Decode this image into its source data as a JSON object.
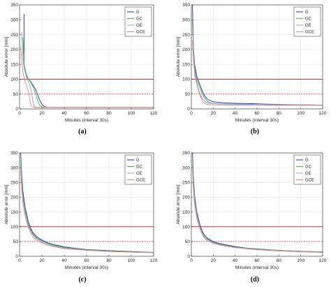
{
  "colors": {
    "G": "#1f2bb8",
    "GC": "#2fbf2f",
    "GE": "#9b9bcc",
    "GCE": "#f08080",
    "threshold_100": "#e8101a",
    "threshold_50": "#f04060",
    "grid": "#e3e3e3",
    "axis": "#262626"
  },
  "chart_data": [
    {
      "type": "line",
      "panel_label": "(a)",
      "xlabel": "Minutes (interval 30s)",
      "ylabel": "Absolute error [mm]",
      "xlim": [
        0,
        120
      ],
      "ylim": [
        0,
        350
      ],
      "xticks": [
        0,
        20,
        40,
        60,
        80,
        100,
        120
      ],
      "yticks": [
        0,
        50,
        100,
        150,
        200,
        250,
        300,
        350
      ],
      "grid": true,
      "legend_position": "top-right",
      "hlines": [
        {
          "y": 100,
          "style": "solid"
        },
        {
          "y": 50,
          "style": "dashed"
        }
      ],
      "series": [
        {
          "name": "G",
          "x": [
            4,
            4,
            4.5,
            5,
            6,
            8,
            10,
            12,
            14,
            16,
            18,
            20,
            22,
            25,
            30,
            40,
            60,
            80,
            100,
            120
          ],
          "y": [
            320,
            155,
            140,
            125,
            112,
            100,
            92,
            80,
            68,
            50,
            30,
            15,
            8,
            5,
            5,
            5,
            5,
            5,
            5,
            5
          ]
        },
        {
          "name": "GC",
          "x": [
            3,
            4,
            6,
            8,
            10,
            12,
            14,
            16,
            18,
            20,
            25,
            30,
            60,
            120
          ],
          "y": [
            240,
            150,
            118,
            100,
            90,
            75,
            55,
            30,
            12,
            7,
            5,
            5,
            5,
            5
          ]
        },
        {
          "name": "GE",
          "x": [
            2,
            3,
            4,
            6,
            8,
            10,
            11,
            12,
            13,
            15,
            20,
            30,
            120
          ],
          "y": [
            260,
            170,
            140,
            110,
            90,
            70,
            48,
            25,
            10,
            6,
            5,
            5,
            5
          ]
        },
        {
          "name": "GCE",
          "x": [
            1,
            2,
            3,
            4,
            6,
            8,
            9,
            10,
            11,
            12,
            15,
            20,
            30,
            120
          ],
          "y": [
            210,
            160,
            125,
            105,
            80,
            58,
            35,
            15,
            9,
            6,
            5,
            5,
            5,
            5
          ]
        }
      ]
    },
    {
      "type": "line",
      "panel_label": "(b)",
      "xlabel": "Minutes (interval 30s)",
      "ylabel": "Absolute error [mm]",
      "xlim": [
        0,
        120
      ],
      "ylim": [
        0,
        350
      ],
      "xticks": [
        0,
        20,
        40,
        60,
        80,
        100,
        120
      ],
      "yticks": [
        0,
        50,
        100,
        150,
        200,
        250,
        300,
        350
      ],
      "grid": true,
      "legend_position": "top-right",
      "hlines": [
        {
          "y": 100,
          "style": "solid"
        },
        {
          "y": 50,
          "style": "dashed"
        }
      ],
      "series": [
        {
          "name": "G",
          "x": [
            1,
            2,
            3,
            5,
            8,
            10,
            12,
            15,
            20,
            25,
            30,
            40,
            60,
            80,
            100,
            120
          ],
          "y": [
            350,
            200,
            150,
            110,
            80,
            60,
            45,
            32,
            24,
            22,
            20,
            19,
            17,
            15,
            14,
            13
          ]
        },
        {
          "name": "GC",
          "x": [
            1,
            2,
            3,
            5,
            8,
            10,
            12,
            15,
            18,
            20,
            25,
            30,
            40,
            60,
            80,
            100,
            120
          ],
          "y": [
            300,
            190,
            140,
            100,
            70,
            50,
            38,
            25,
            20,
            18,
            17,
            16,
            16,
            15,
            14,
            13,
            12
          ]
        },
        {
          "name": "GE",
          "x": [
            1,
            2,
            3,
            5,
            7,
            9,
            11,
            13,
            15,
            20,
            30,
            60,
            120
          ],
          "y": [
            280,
            180,
            130,
            90,
            60,
            42,
            30,
            24,
            20,
            18,
            16,
            15,
            13
          ]
        },
        {
          "name": "GCE",
          "x": [
            1,
            2,
            3,
            4,
            6,
            8,
            10,
            12,
            15,
            20,
            30,
            60,
            120
          ],
          "y": [
            230,
            160,
            120,
            95,
            70,
            45,
            28,
            18,
            15,
            14,
            13,
            12,
            12
          ]
        }
      ]
    },
    {
      "type": "line",
      "panel_label": "(c)",
      "xlabel": "Minutes (interval 30s)",
      "ylabel": "Absolute error [mm]",
      "xlim": [
        0,
        120
      ],
      "ylim": [
        0,
        350
      ],
      "xticks": [
        0,
        20,
        40,
        60,
        80,
        100,
        120
      ],
      "yticks": [
        0,
        50,
        100,
        150,
        200,
        250,
        300,
        350
      ],
      "grid": true,
      "legend_position": "top-right",
      "hlines": [
        {
          "y": 100,
          "style": "solid"
        },
        {
          "y": 50,
          "style": "dashed"
        }
      ],
      "series": [
        {
          "name": "G",
          "x": [
            1,
            2,
            3,
            5,
            8,
            10,
            12,
            15,
            20,
            25,
            30,
            40,
            50,
            60,
            80,
            100,
            120
          ],
          "y": [
            350,
            270,
            220,
            165,
            115,
            95,
            80,
            67,
            55,
            46,
            40,
            32,
            27,
            23,
            19,
            16,
            13
          ]
        },
        {
          "name": "GC",
          "x": [
            1,
            2,
            3,
            5,
            8,
            10,
            12,
            15,
            20,
            25,
            30,
            40,
            60,
            80,
            100,
            120
          ],
          "y": [
            330,
            255,
            205,
            155,
            108,
            90,
            76,
            63,
            52,
            44,
            38,
            30,
            22,
            18,
            15,
            13
          ]
        },
        {
          "name": "GE",
          "x": [
            1,
            2,
            3,
            5,
            8,
            10,
            12,
            15,
            20,
            25,
            30,
            40,
            60,
            80,
            100,
            120
          ],
          "y": [
            310,
            240,
            195,
            148,
            102,
            85,
            72,
            60,
            48,
            40,
            35,
            28,
            21,
            17,
            14,
            12
          ]
        },
        {
          "name": "GCE",
          "x": [
            1,
            2,
            3,
            5,
            8,
            10,
            12,
            15,
            20,
            25,
            30,
            40,
            60,
            80,
            100,
            120
          ],
          "y": [
            290,
            225,
            180,
            135,
            95,
            78,
            66,
            55,
            45,
            38,
            33,
            26,
            20,
            16,
            14,
            12
          ]
        }
      ]
    },
    {
      "type": "line",
      "panel_label": "(d)",
      "xlabel": "Minutes (interval 30s)",
      "ylabel": "Absolute error [mm]",
      "xlim": [
        0,
        120
      ],
      "ylim": [
        0,
        350
      ],
      "xticks": [
        0,
        20,
        40,
        60,
        80,
        100,
        120
      ],
      "yticks": [
        0,
        50,
        100,
        150,
        200,
        250,
        300,
        350
      ],
      "grid": true,
      "legend_position": "top-right",
      "hlines": [
        {
          "y": 100,
          "style": "solid"
        },
        {
          "y": 50,
          "style": "dashed"
        }
      ],
      "series": [
        {
          "name": "G",
          "x": [
            1,
            2,
            3,
            5,
            8,
            10,
            12,
            15,
            20,
            25,
            30,
            40,
            50,
            60,
            80,
            100,
            120
          ],
          "y": [
            350,
            260,
            205,
            150,
            105,
            85,
            72,
            60,
            50,
            44,
            40,
            33,
            28,
            25,
            20,
            17,
            15
          ]
        },
        {
          "name": "GC",
          "x": [
            1,
            2,
            3,
            5,
            8,
            10,
            12,
            15,
            20,
            25,
            30,
            40,
            60,
            80,
            100,
            120
          ],
          "y": [
            330,
            245,
            195,
            142,
            100,
            82,
            70,
            58,
            48,
            42,
            38,
            31,
            24,
            20,
            17,
            15
          ]
        },
        {
          "name": "GE",
          "x": [
            1,
            2,
            3,
            5,
            8,
            10,
            12,
            15,
            20,
            25,
            30,
            40,
            60,
            80,
            100,
            120
          ],
          "y": [
            310,
            235,
            188,
            138,
            96,
            78,
            66,
            55,
            46,
            40,
            36,
            30,
            23,
            19,
            16,
            14
          ]
        },
        {
          "name": "GCE",
          "x": [
            1,
            2,
            3,
            5,
            8,
            10,
            12,
            15,
            20,
            25,
            30,
            40,
            60,
            80,
            100,
            120
          ],
          "y": [
            290,
            220,
            175,
            128,
            90,
            74,
            62,
            52,
            44,
            39,
            35,
            29,
            22,
            18,
            15,
            13
          ]
        }
      ]
    }
  ]
}
